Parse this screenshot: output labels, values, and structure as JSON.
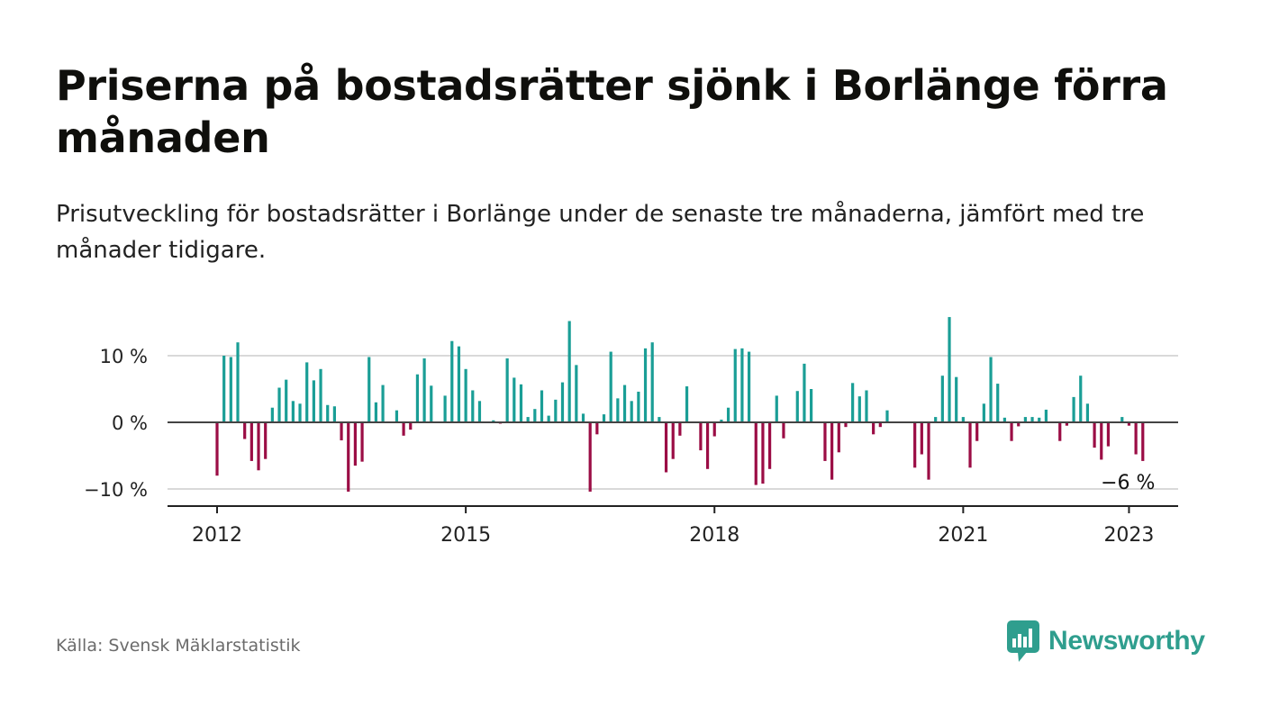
{
  "title": "Priserna på bostadsrätter sjönk i Borlänge förra månaden",
  "subtitle": "Prisutveckling för bostadsrätter i Borlänge under de senaste tre månaderna, jämfört med tre månader tidigare.",
  "source": "Källa: Svensk Mäklarstatistik",
  "brand": "Newsworthy",
  "colors": {
    "positive": "#1a9e96",
    "negative": "#9b0d45",
    "brand": "#2f9e8e",
    "grid": "#d9d9d9",
    "axis": "#222222"
  },
  "chart_data": {
    "type": "bar",
    "title": "Priserna på bostadsrätter sjönk i Borlänge förra månaden",
    "subtitle": "Prisutveckling för bostadsrätter i Borlänge under de senaste tre månaderna, jämfört med tre månader tidigare.",
    "xlabel": "",
    "ylabel": "",
    "ylim": [
      -12,
      16
    ],
    "yticks": [
      {
        "value": -10,
        "label": "−10 %"
      },
      {
        "value": 0,
        "label": "0 %"
      },
      {
        "value": 10,
        "label": "10 %"
      }
    ],
    "xticks": [
      {
        "value": "2012-01",
        "label": "2012"
      },
      {
        "value": "2015-01",
        "label": "2015"
      },
      {
        "value": "2018-01",
        "label": "2018"
      },
      {
        "value": "2021-01",
        "label": "2021"
      },
      {
        "value": "2023-01",
        "label": "2023"
      }
    ],
    "grid": true,
    "start_month": "2012-01",
    "end_month": "2023-01",
    "values": [
      -8,
      10,
      9.8,
      12,
      -2.5,
      -5.8,
      -7.2,
      -5.5,
      2.2,
      5.2,
      6.4,
      3.2,
      2.8,
      9,
      6.3,
      8,
      2.6,
      2.4,
      -2.7,
      -10.4,
      -6.5,
      -5.9,
      9.8,
      3,
      5.6,
      0,
      1.8,
      -2,
      -1.1,
      7.2,
      9.6,
      5.5,
      0,
      4,
      12.2,
      11.4,
      8,
      4.8,
      3.2,
      0,
      0.3,
      -0.2,
      9.6,
      6.7,
      5.7,
      0.8,
      2,
      4.8,
      1,
      3.4,
      6,
      15.2,
      8.6,
      1.3,
      -10.4,
      -1.8,
      1.2,
      10.6,
      3.6,
      5.6,
      3.2,
      4.6,
      11.1,
      12,
      0.8,
      -7.5,
      -5.5,
      -2,
      5.4,
      0,
      -4.2,
      -7,
      -2.1,
      0.4,
      2.2,
      11,
      11.1,
      10.6,
      -9.4,
      -9.2,
      -7,
      4,
      -2.4,
      0,
      4.7,
      8.8,
      5,
      0,
      -5.8,
      -8.6,
      -4.5,
      -0.7,
      5.9,
      3.9,
      4.8,
      -1.8,
      -0.7,
      1.8,
      0,
      0,
      0,
      -6.8,
      -4.8,
      -8.6,
      0.8,
      7,
      15.8,
      6.8,
      0.8,
      -6.8,
      -2.8,
      2.8,
      9.8,
      5.8,
      0.7,
      -2.8,
      -0.6,
      0.8,
      0.8,
      0.7,
      1.9,
      0,
      -2.8,
      -0.5,
      3.8,
      7,
      2.8,
      -3.8,
      -5.6,
      -3.6,
      0,
      0.8,
      -0.5,
      -4.8,
      -5.8
    ],
    "annotations": [
      {
        "text": "−6 %",
        "x": "2023-01",
        "y": -6
      }
    ]
  }
}
